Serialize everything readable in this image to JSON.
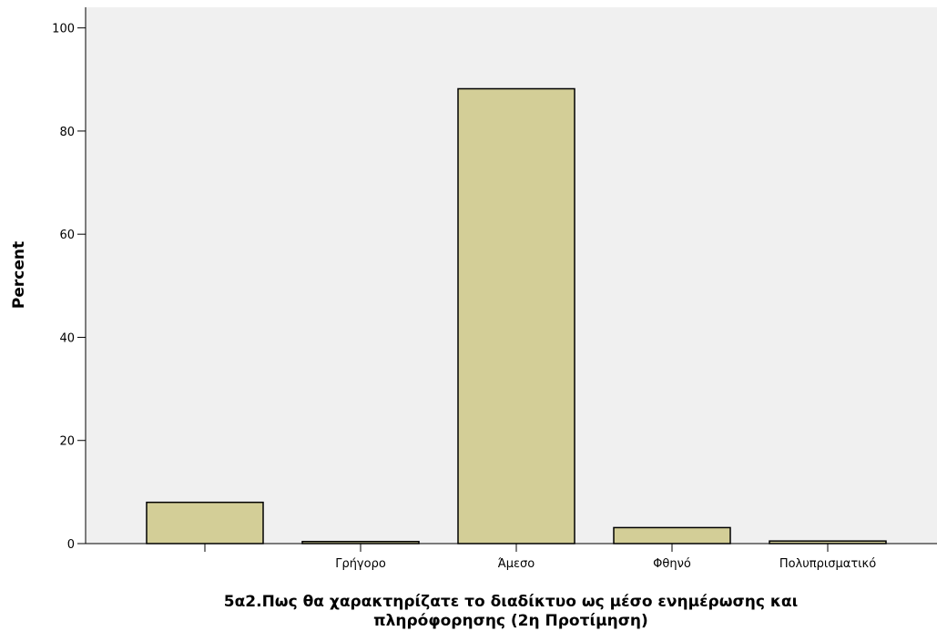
{
  "chart_data": {
    "type": "bar",
    "title": "",
    "categories": [
      "",
      "Γρήγορο",
      "Άμεσο",
      "Φθηνό",
      "Πολυπρισματικό"
    ],
    "values": [
      8.0,
      0.4,
      88.2,
      3.1,
      0.5
    ],
    "xlabel_lines": [
      "5α2.Πως θα χαρακτηρίζατε το διαδίκτυο ως μέσο ενημέρωσης και",
      "πληρόφορησης (2η Προτίμηση)"
    ],
    "ylabel": "Percent",
    "ylim": [
      0,
      104
    ],
    "yticks": [
      0,
      20,
      40,
      60,
      80,
      100
    ],
    "grid": false,
    "colors": {
      "plot_background": "#f0f0f0",
      "bar_fill": "#d3ce97",
      "bar_stroke": "#000000",
      "axis": "#000000"
    }
  }
}
